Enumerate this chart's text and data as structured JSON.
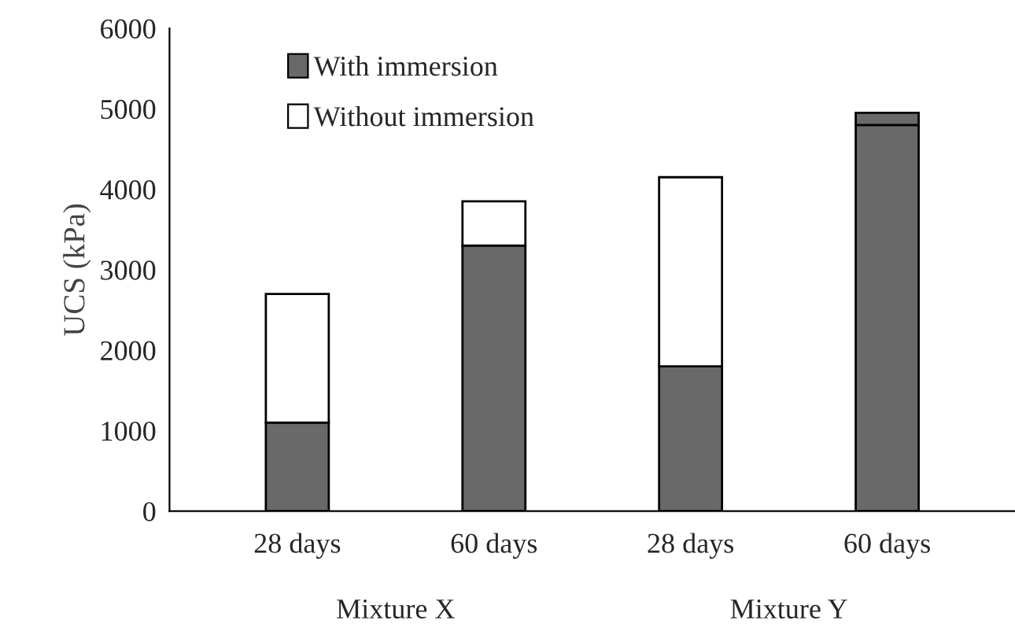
{
  "chart_data": {
    "type": "bar",
    "ylabel": "UCS (kPa)",
    "categories": [
      "28 days",
      "60 days",
      "28 days",
      "60 days"
    ],
    "series": [
      {
        "name": "With immersion",
        "color": "#696969",
        "values": [
          1100,
          3300,
          1800,
          4800
        ]
      },
      {
        "name": "Without immersion",
        "color": "#ffffff",
        "colors": [
          "#ffffff",
          "#ffffff",
          "#ffffff",
          "#696969"
        ],
        "values": [
          1600,
          550,
          2350,
          150
        ]
      }
    ],
    "stacked": true,
    "ylim": [
      0,
      6000
    ],
    "yticks": [
      0,
      1000,
      2000,
      3000,
      4000,
      5000,
      6000
    ],
    "grid": false,
    "legend": "top left",
    "annotations": [
      "Mixture X",
      "Mixture Y"
    ]
  }
}
